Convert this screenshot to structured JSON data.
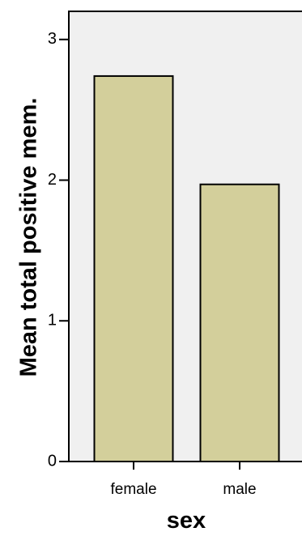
{
  "chart_data": {
    "type": "bar",
    "categories": [
      "female",
      "male"
    ],
    "values": [
      2.74,
      1.97
    ],
    "xlabel": "sex",
    "ylabel": "Mean total positive mem.",
    "ylim": [
      0,
      3.2
    ],
    "yticks": [
      0,
      1,
      2,
      3
    ],
    "grid": false,
    "colors": {
      "bar_fill": "#d3cf9b",
      "plot_background": "#f0f0f0",
      "outline": "#000000"
    }
  }
}
